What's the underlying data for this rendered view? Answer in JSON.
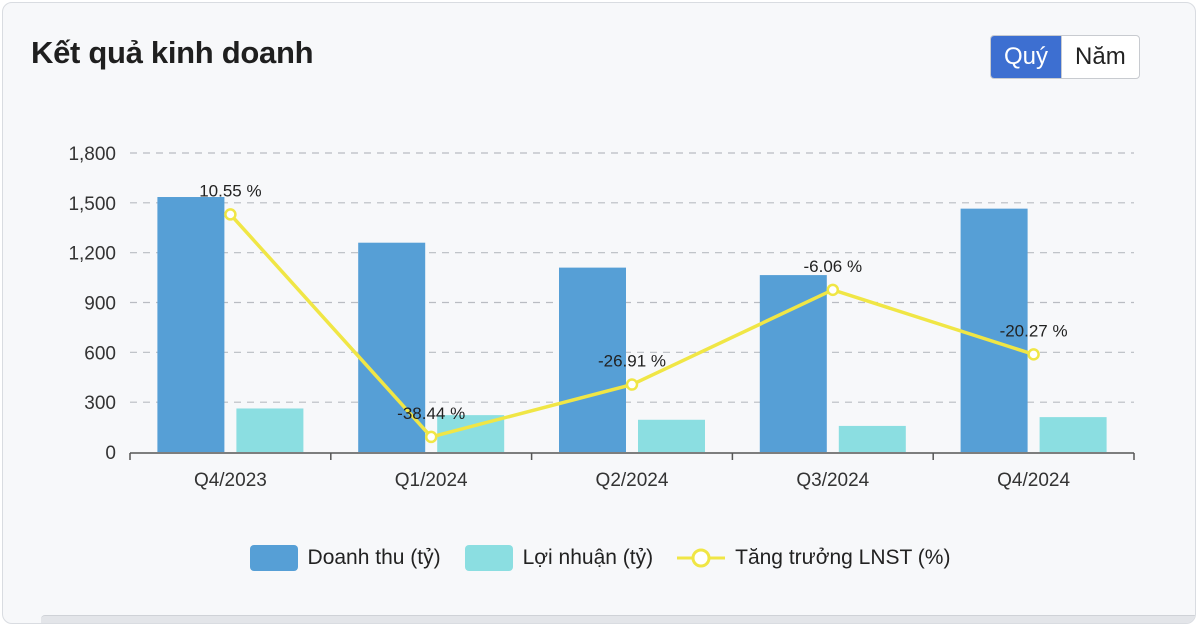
{
  "header": {
    "title": "Kết quả kinh doanh",
    "toggle_options": [
      "Quý",
      "Năm"
    ],
    "toggle_active": "Quý"
  },
  "chart_data": {
    "type": "bar",
    "categories": [
      "Q4/2023",
      "Q1/2024",
      "Q2/2024",
      "Q3/2024",
      "Q4/2024"
    ],
    "series": [
      {
        "name": "Doanh thu (tỷ)",
        "type": "bar",
        "color": "#569fd6",
        "values": [
          1535,
          1260,
          1110,
          1065,
          1465
        ]
      },
      {
        "name": "Lợi nhuận (tỷ)",
        "type": "bar",
        "color": "#8bdee1",
        "values": [
          262,
          222,
          194,
          157,
          210
        ]
      },
      {
        "name": "Tăng trưởng LNST (%)",
        "type": "line",
        "color": "#f0e645",
        "values": [
          10.55,
          -38.44,
          -26.91,
          -6.06,
          -20.27
        ],
        "labels": [
          "10.55 %",
          "-38.44 %",
          "-26.91 %",
          "-6.06 %",
          "-20.27 %"
        ]
      }
    ],
    "y_axis": {
      "min": 0,
      "max": 1800,
      "ticks": [
        "0",
        "300",
        "600",
        "900",
        "1,200",
        "1,500",
        "1,800"
      ]
    },
    "grid": true,
    "legend_position": "bottom"
  }
}
